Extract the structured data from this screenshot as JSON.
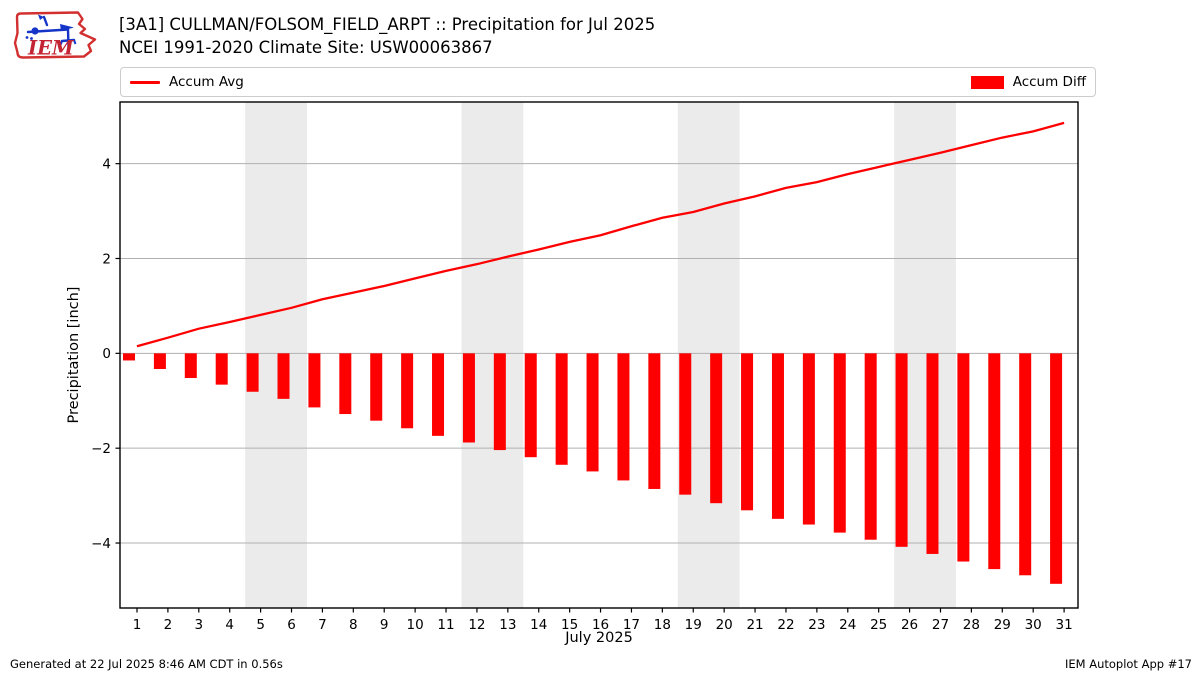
{
  "logo": {
    "text": "IEM"
  },
  "legend": {
    "items": [
      {
        "label": "Accum Avg",
        "type": "line",
        "color": "#ff0000"
      },
      {
        "label": "Accum Diff",
        "type": "patch",
        "color": "#ff0000"
      }
    ]
  },
  "footer": {
    "left": "Generated at 22 Jul 2025 8:46 AM CDT in 0.56s",
    "right": "IEM Autoplot App #17"
  },
  "chart_data": {
    "type": "bar",
    "title": "[3A1] CULLMAN/FOLSOM_FIELD_ARPT :: Precipitation for Jul 2025",
    "subtitle": "NCEI 1991-2020 Climate Site: USW00063867",
    "xlabel": "July 2025",
    "ylabel": "Precipitation [inch]",
    "x": [
      1,
      2,
      3,
      4,
      5,
      6,
      7,
      8,
      9,
      10,
      11,
      12,
      13,
      14,
      15,
      16,
      17,
      18,
      19,
      20,
      21,
      22,
      23,
      24,
      25,
      26,
      27,
      28,
      29,
      30,
      31
    ],
    "series": [
      {
        "name": "Accum Avg",
        "type": "line",
        "color": "#ff0000",
        "values": [
          0.15,
          0.33,
          0.52,
          0.66,
          0.81,
          0.96,
          1.14,
          1.28,
          1.42,
          1.58,
          1.74,
          1.88,
          2.04,
          2.19,
          2.35,
          2.49,
          2.68,
          2.86,
          2.98,
          3.16,
          3.31,
          3.49,
          3.61,
          3.78,
          3.93,
          4.08,
          4.23,
          4.39,
          4.55,
          4.68,
          4.86
        ]
      },
      {
        "name": "Accum Diff",
        "type": "bar",
        "color": "#ff0000",
        "values": [
          -0.15,
          -0.33,
          -0.52,
          -0.66,
          -0.81,
          -0.96,
          -1.14,
          -1.28,
          -1.42,
          -1.58,
          -1.74,
          -1.88,
          -2.04,
          -2.19,
          -2.35,
          -2.49,
          -2.68,
          -2.86,
          -2.98,
          -3.16,
          -3.31,
          -3.49,
          -3.61,
          -3.78,
          -3.93,
          -4.08,
          -4.23,
          -4.39,
          -4.55,
          -4.68,
          -4.86
        ]
      }
    ],
    "y_ticks": [
      -4,
      -2,
      0,
      2,
      4
    ],
    "ylim": [
      -5.37,
      5.3
    ],
    "xlim": [
      0.45,
      31.45
    ],
    "weekend_bands": [
      [
        4.5,
        6.5
      ],
      [
        11.5,
        13.5
      ],
      [
        18.5,
        20.5
      ],
      [
        25.5,
        27.5
      ]
    ],
    "grid": true,
    "legend_position": "top, full-width, outside plot",
    "band_color": "#ebebeb",
    "grid_color": "#b0b0b0"
  }
}
